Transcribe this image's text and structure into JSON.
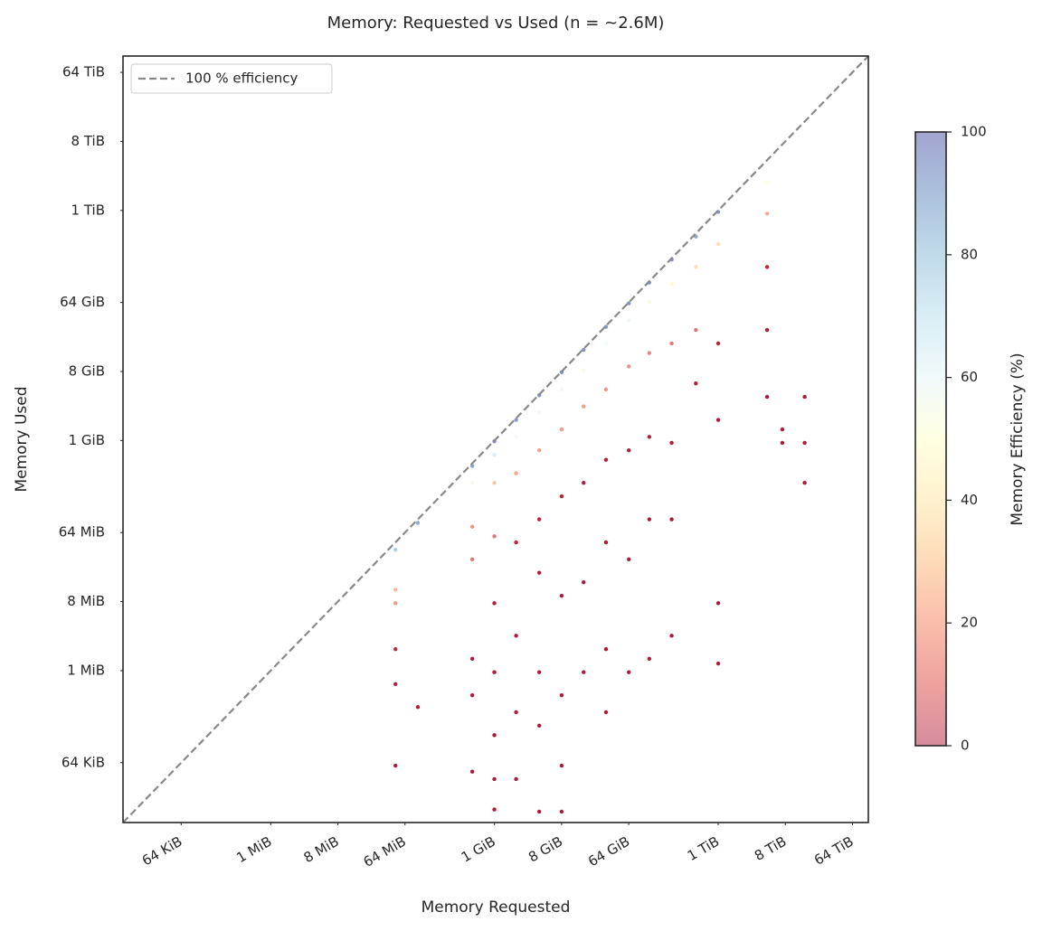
{
  "chart_data": {
    "type": "scatter",
    "title": "Memory: Requested vs Used (n = ~2.6M)",
    "x_label": "Memory Requested",
    "y_label": "Memory Used",
    "xscale": "log",
    "yscale": "log",
    "xlim": [
      10800,
      115000000000000
    ],
    "ylim": [
      10800,
      115000000000000
    ],
    "xticks": [
      {
        "value": 65536,
        "label": "64 KiB"
      },
      {
        "value": 1048576,
        "label": "1 MiB"
      },
      {
        "value": 8388608,
        "label": "8 MiB"
      },
      {
        "value": 67108864,
        "label": "64 MiB"
      },
      {
        "value": 1073741824,
        "label": "1 GiB"
      },
      {
        "value": 8589934592,
        "label": "8 GiB"
      },
      {
        "value": 68719476736,
        "label": "64 GiB"
      },
      {
        "value": 1099511627776,
        "label": "1 TiB"
      },
      {
        "value": 8796093022208,
        "label": "8 TiB"
      },
      {
        "value": 70368744177664,
        "label": "64 TiB"
      }
    ],
    "yticks": [
      {
        "value": 65536,
        "label": "64 KiB"
      },
      {
        "value": 1048576,
        "label": "1 MiB"
      },
      {
        "value": 8388608,
        "label": "8 MiB"
      },
      {
        "value": 67108864,
        "label": "64 MiB"
      },
      {
        "value": 1073741824,
        "label": "1 GiB"
      },
      {
        "value": 8589934592,
        "label": "8 GiB"
      },
      {
        "value": 68719476736,
        "label": "64 GiB"
      },
      {
        "value": 1099511627776,
        "label": "1 TiB"
      },
      {
        "value": 8796093022208,
        "label": "8 TiB"
      },
      {
        "value": 70368744177664,
        "label": "64 TiB"
      }
    ],
    "legend": {
      "label": "100 % efficiency",
      "color": "#888888",
      "position": "upper left"
    },
    "colorbar": {
      "label": "Memory Efficiency (%)",
      "lim": [
        0,
        100
      ],
      "ticks": [
        0,
        20,
        40,
        60,
        80,
        100
      ],
      "colormap": "RdYlBu"
    },
    "x": [
      50000000,
      50000000,
      50000000,
      50000000,
      50000000,
      50000000,
      100000000,
      100000000,
      540000000,
      540000000,
      540000000,
      540000000,
      540000000,
      540000000,
      540000000,
      1070000000,
      1070000000,
      1070000000,
      1070000000,
      1070000000,
      1070000000,
      1070000000,
      1070000000,
      1070000000,
      2100000000,
      2100000000,
      2100000000,
      2100000000,
      2100000000,
      2100000000,
      2100000000,
      4300000000,
      4300000000,
      4300000000,
      4300000000,
      4300000000,
      4300000000,
      4300000000,
      4300000000,
      8600000000,
      8600000000,
      8600000000,
      8600000000,
      8600000000,
      8600000000,
      8600000000,
      8600000000,
      17000000000,
      17000000000,
      17000000000,
      17000000000,
      17000000000,
      17000000000,
      34000000000,
      34000000000,
      34000000000,
      34000000000,
      34000000000,
      34000000000,
      34000000000,
      69000000000,
      69000000000,
      69000000000,
      69000000000,
      69000000000,
      69000000000,
      130000000000,
      130000000000,
      130000000000,
      130000000000,
      130000000000,
      130000000000,
      260000000000,
      260000000000,
      260000000000,
      260000000000,
      260000000000,
      260000000000,
      550000000000,
      550000000000,
      550000000000,
      550000000000,
      1100000000000,
      1100000000000,
      1100000000000,
      1100000000000,
      1100000000000,
      1100000000000,
      5000000000000,
      5000000000000,
      5000000000000,
      5000000000000,
      5000000000000,
      8000000000000,
      8000000000000,
      16000000000000,
      16000000000000,
      16000000000000
    ],
    "y": [
      40000000,
      12000000,
      8000000,
      2000000,
      700000,
      60000,
      90000000,
      350000,
      500000000,
      300000000,
      80000000,
      30000000,
      1500000,
      500000,
      50000,
      1050000000,
      700000000,
      300000000,
      60000000,
      8000000,
      1000000,
      150000,
      40000,
      16000,
      2000000000,
      1200000000,
      400000000,
      50000000,
      3000000,
      300000,
      40000,
      4200000000,
      2500000000,
      800000000,
      100000000,
      20000000,
      1000000,
      200000,
      15000,
      8400000000,
      5000000000,
      1500000000,
      200000000,
      10000000,
      500000,
      60000,
      15000,
      16500000000,
      9000000000,
      3000000000,
      300000000,
      15000000,
      1000000,
      33000000000,
      20000000000,
      5000000000,
      600000000,
      50000000,
      2000000,
      300000,
      67000000000,
      40000000000,
      10000000000,
      800000000,
      30000000,
      1000000,
      125000000000,
      70000000000,
      15000000000,
      1200000000,
      100000000,
      1500000,
      250000000000,
      120000000000,
      20000000000,
      1000000000,
      100000000,
      3000000,
      500000000000,
      200000000000,
      30000000000,
      6000000000,
      1050000000000,
      400000000000,
      20000000000,
      2000000000,
      8000000,
      1300000,
      2500000000000,
      1000000000000,
      200000000000,
      30000000000,
      4000000000,
      1500000000,
      1000000000,
      4000000000,
      1000000000,
      300000000
    ]
  }
}
